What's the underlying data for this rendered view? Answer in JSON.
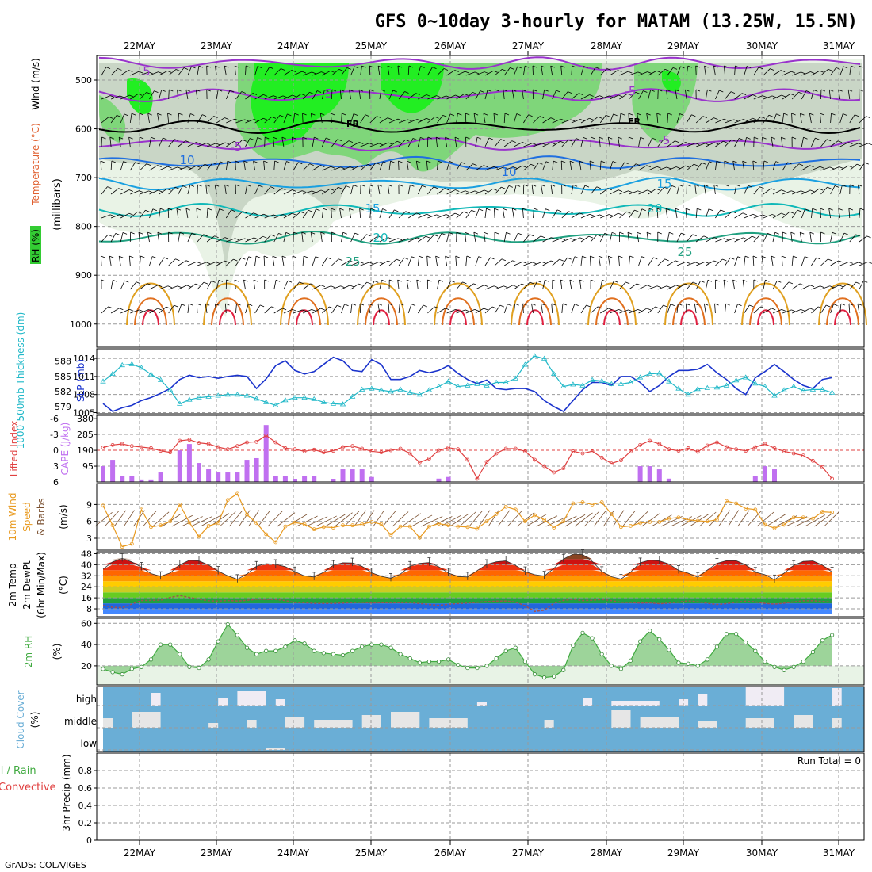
{
  "title": "GFS 0~10day 3-hourly for MATAM (13.25W, 15.5N)",
  "footer": "GrADS: COLA/IGES",
  "run_total_label": "Run Total = 0",
  "x_labels": [
    "22MAY",
    "23MAY",
    "24MAY",
    "25MAY",
    "26MAY",
    "27MAY",
    "28MAY",
    "29MAY",
    "30MAY",
    "31MAY"
  ],
  "colors": {
    "rh_green": "#33cc33",
    "temp_purple": "#9933cc",
    "temp_blue": "#1f6fe0",
    "slp_blue": "#1a33cc",
    "thickness_cyan": "#20b8c8",
    "lifted_red": "#e04040",
    "cape_purple": "#c070f0",
    "wind_orange": "#e89a20",
    "cloud_blue": "#6aaed6",
    "rh2m_green": "#40aa40"
  },
  "chart_data": [
    {
      "type": "heatmap",
      "name_label": "RH (%)",
      "ylabel_parts": [
        "RH (%)",
        "Temperature (°C)",
        "Wind (m/s)"
      ],
      "ylabel_units": "(millibars)",
      "y_ticks": [
        "500",
        "600",
        "700",
        "800",
        "900",
        "1000"
      ],
      "contour_labels": [
        "-5",
        "-5",
        "FR",
        "FR",
        "-5",
        "-5",
        "5",
        "10",
        "10",
        "15",
        "15",
        "20",
        "20",
        "25",
        "25"
      ],
      "grid": true
    },
    {
      "type": "line",
      "ylabel_left": "1000-500mb Thickness (dm)",
      "ylabel_right": "SLP (mb)",
      "left_ticks": [
        "588",
        "585",
        "582",
        "579"
      ],
      "right_ticks": [
        "1014",
        "1011",
        "1008",
        "1005"
      ],
      "series": [
        {
          "name": "SLP (mb)",
          "values": [
            1006.5,
            1005.2,
            1005.8,
            1006.2,
            1007.0,
            1007.5,
            1008.2,
            1009.0,
            1010.5,
            1011.2,
            1010.8,
            1011.0,
            1010.7,
            1011.0,
            1011.2,
            1011.0,
            1009.0,
            1010.6,
            1012.8,
            1013.6,
            1012.0,
            1011.4,
            1011.8,
            1013.0,
            1014.2,
            1013.6,
            1012.0,
            1011.8,
            1013.8,
            1013.0,
            1010.5,
            1010.5,
            1011.0,
            1012.0,
            1011.6,
            1012.0,
            1012.8,
            1011.5,
            1010.5,
            1009.8,
            1010.4,
            1009.0,
            1008.8,
            1009.0,
            1009.0,
            1008.5,
            1007.0,
            1006.0,
            1005.2,
            1007.0,
            1008.8,
            1010.0,
            1010.0,
            1009.5,
            1011.0,
            1011.0,
            1010.0,
            1008.5,
            1009.5,
            1011.0,
            1012.0,
            1012.0,
            1012.2,
            1013.0,
            1011.6,
            1010.5,
            1009.0,
            1008.0,
            1010.8,
            1011.8,
            1013.0,
            1011.8,
            1010.5,
            1009.5,
            1009.0,
            1010.5,
            1010.8
          ]
        },
        {
          "name": "1000-500mb Thickness (dm)",
          "values": [
            584.0,
            585.5,
            587.2,
            587.4,
            586.7,
            585.4,
            584.3,
            582.3,
            579.6,
            580.4,
            580.8,
            581.0,
            581.2,
            581.4,
            581.4,
            581.2,
            580.6,
            579.9,
            579.3,
            580.3,
            580.8,
            580.8,
            580.5,
            579.9,
            579.6,
            579.5,
            581.0,
            582.4,
            582.6,
            582.3,
            582.0,
            582.4,
            581.8,
            581.4,
            582.3,
            583.0,
            584.0,
            583.0,
            583.2,
            583.5,
            583.2,
            583.8,
            583.8,
            584.6,
            587.3,
            589.0,
            588.5,
            585.5,
            583.0,
            583.4,
            583.2,
            584.3,
            584.1,
            583.5,
            583.5,
            583.8,
            584.8,
            585.5,
            585.6,
            584.0,
            582.6,
            581.4,
            582.5,
            582.7,
            582.8,
            583.2,
            584.2,
            584.8,
            583.6,
            583.0,
            581.2,
            582.3,
            583.0,
            582.2,
            582.4,
            582.4,
            581.8
          ]
        }
      ],
      "grid": true
    },
    {
      "type": "bar",
      "ylabel_left": "Lifted Index",
      "ylabel_right": "CAPE (J/kg)",
      "left_ticks": [
        "-6",
        "-3",
        "0",
        "3",
        "6"
      ],
      "right_ticks": [
        "380",
        "285",
        "190",
        "95"
      ],
      "series": [
        {
          "name": "CAPE (J/kg)",
          "values": [
            95,
            133,
            38,
            38,
            15,
            15,
            57,
            0,
            190,
            228,
            114,
            76,
            57,
            57,
            57,
            133,
            143,
            342,
            38,
            38,
            19,
            38,
            38,
            0,
            19,
            76,
            76,
            76,
            30,
            0,
            0,
            0,
            0,
            0,
            0,
            20,
            30,
            0,
            0,
            0,
            0,
            0,
            0,
            0,
            0,
            0,
            0,
            0,
            0,
            0,
            0,
            0,
            0,
            0,
            0,
            0,
            95,
            95,
            76,
            20,
            0,
            0,
            0,
            0,
            0,
            0,
            0,
            0,
            38,
            95,
            76,
            0,
            0,
            0,
            0,
            0,
            0
          ]
        },
        {
          "name": "Lifted Index",
          "values": [
            -0.5,
            -1.0,
            -1.2,
            -0.8,
            -0.6,
            -0.4,
            0.1,
            0.4,
            -1.8,
            -2.0,
            -1.4,
            -1.2,
            -0.6,
            -0.2,
            -0.8,
            -1.5,
            -1.6,
            -2.8,
            -1.5,
            -0.4,
            -0.2,
            0.2,
            -0.1,
            0.4,
            0.1,
            -0.6,
            -0.8,
            -0.3,
            0.2,
            0.4,
            0.0,
            -0.3,
            0.6,
            2.3,
            1.6,
            0.0,
            -0.5,
            -0.2,
            1.8,
            5.4,
            2.2,
            0.6,
            -0.3,
            -0.3,
            0.2,
            1.8,
            3.0,
            4.2,
            3.4,
            0.2,
            0.6,
            0.2,
            1.4,
            2.5,
            1.9,
            0.2,
            -1.0,
            -1.8,
            -1.2,
            -0.2,
            0.1,
            -0.4,
            0.3,
            -0.9,
            -1.5,
            -0.6,
            -0.2,
            0.1,
            -0.6,
            -1.2,
            -0.4,
            0.2,
            0.6,
            1.0,
            2.0,
            3.2,
            5.4
          ]
        }
      ],
      "grid": true
    },
    {
      "type": "line",
      "ylabel_parts": [
        "10m Wind",
        "Speed",
        "& Barbs"
      ],
      "ylabel_units": "(m/s)",
      "y_ticks": [
        "9",
        "6",
        "3"
      ],
      "series": [
        {
          "name": "Speed",
          "values": [
            8.8,
            5.3,
            1.5,
            2.0,
            8.1,
            5.0,
            5.3,
            6.0,
            9.0,
            5.8,
            3.3,
            5.2,
            5.7,
            9.8,
            10.9,
            7.2,
            5.7,
            3.7,
            2.3,
            5.1,
            5.8,
            5.5,
            4.6,
            5.0,
            4.9,
            5.3,
            5.3,
            5.5,
            5.9,
            5.5,
            3.6,
            5.1,
            5.1,
            3.1,
            5.1,
            5.6,
            5.3,
            5.1,
            5.0,
            4.7,
            6.0,
            7.3,
            8.6,
            8.1,
            6.0,
            7.1,
            6.3,
            4.9,
            6.0,
            9.2,
            9.4,
            9.0,
            9.4,
            7.3,
            5.0,
            5.2,
            5.7,
            5.9,
            5.9,
            6.5,
            6.7,
            6.3,
            6.1,
            6.0,
            6.3,
            9.6,
            9.2,
            8.3,
            8.1,
            5.4,
            4.8,
            5.4,
            6.7,
            6.7,
            6.5,
            7.7,
            7.6
          ]
        }
      ],
      "grid": true
    },
    {
      "type": "area",
      "ylabel_parts": [
        "2m Temp",
        "2m DewPt",
        "(6hr Min/Max)"
      ],
      "ylabel_units": "(°C)",
      "y_ticks": [
        "48",
        "40",
        "32",
        "24",
        "16",
        "8"
      ],
      "series": [
        {
          "name": "2m Temp",
          "values": [
            36.8,
            42.1,
            44.6,
            42.0,
            38.2,
            33.6,
            31.5,
            34.0,
            39.9,
            43.2,
            42.8,
            39.8,
            35.3,
            32.0,
            29.4,
            33.3,
            38.9,
            40.8,
            40.2,
            38.6,
            34.9,
            31.9,
            31.1,
            34.5,
            39.6,
            41.4,
            41.3,
            38.8,
            34.2,
            31.6,
            30.2,
            33.2,
            38.9,
            41.0,
            41.6,
            38.5,
            34.0,
            31.4,
            31.1,
            35.7,
            40.2,
            42.1,
            42.8,
            39.5,
            35.0,
            32.8,
            31.8,
            37.4,
            44.1,
            47.7,
            47.4,
            42.4,
            35.1,
            31.3,
            29.6,
            34.6,
            41.4,
            43.3,
            42.8,
            40.5,
            35.9,
            33.9,
            30.9,
            36.1,
            41.0,
            42.9,
            42.9,
            39.9,
            34.6,
            32.8,
            29.1,
            33.9,
            39.5,
            42.4,
            42.8,
            39.7,
            34.7
          ]
        },
        {
          "name": "2m DewPt",
          "values": [
            10.5,
            9.1,
            8.9,
            11.5,
            14.0,
            14.2,
            14.3,
            16.3,
            17.7,
            16.3,
            15.0,
            13.9,
            13.6,
            14.0,
            13.7,
            14.2,
            15.0,
            14.9,
            14.8,
            14.0,
            12.5,
            12.5,
            12.0,
            12.0,
            12.0,
            12.2,
            12.5,
            12.8,
            12.3,
            12.5,
            12.4,
            12.5,
            12.5,
            11.9,
            11.2,
            10.5,
            11.3,
            11.8,
            12.2,
            12.8,
            13.2,
            13.6,
            13.7,
            12.9,
            10.2,
            6.1,
            7.0,
            12.1,
            14.1,
            15.0,
            14.0,
            14.3,
            14.8,
            14.0,
            12.8,
            12.6,
            12.2,
            12.4,
            11.7,
            12.2,
            12.9,
            13.8,
            13.1,
            12.1,
            11.1,
            11.8,
            12.8,
            13.6,
            13.0,
            12.0,
            11.4,
            12.1,
            13.0,
            13.8,
            13.9,
            13.3,
            12.9
          ]
        }
      ],
      "grid": true
    },
    {
      "type": "area",
      "ylabel_parts": [
        "2m RH"
      ],
      "ylabel_units": "(%)",
      "y_ticks": [
        "60",
        "40",
        "20"
      ],
      "series": [
        {
          "name": "2m RH",
          "values": [
            17,
            14,
            12,
            17,
            19,
            26,
            40,
            40,
            31,
            19,
            18,
            26,
            43,
            59,
            49,
            37,
            31,
            34,
            34,
            38,
            44,
            41,
            34,
            32,
            31,
            30,
            34,
            38,
            40,
            40,
            37,
            31,
            27,
            23,
            24,
            24,
            26,
            21,
            18,
            18,
            20,
            27,
            34,
            37,
            24,
            12,
            9,
            10,
            16,
            39,
            51,
            46,
            31,
            20,
            17,
            25,
            43,
            53,
            45,
            35,
            23,
            22,
            20,
            26,
            38,
            50,
            50,
            42,
            34,
            24,
            19,
            16,
            19,
            24,
            33,
            44,
            49
          ]
        }
      ],
      "grid": true
    },
    {
      "type": "heatmap",
      "ylabel_parts": [
        "Cloud Cover"
      ],
      "ylabel_units": "(%)",
      "y_ticks": [
        "high",
        "middle",
        "low"
      ],
      "grid": true
    },
    {
      "type": "bar",
      "ylabel_parts": [
        "Total / Rain",
        "Convective"
      ],
      "ylabel_units": "3hr Precip (mm)",
      "y_ticks": [
        "0",
        "0.2",
        "0.4",
        "0.6",
        "0.8"
      ],
      "series": [
        {
          "name": "3hr Precip (mm)",
          "values": [
            0,
            0,
            0,
            0,
            0,
            0,
            0,
            0,
            0,
            0
          ]
        }
      ],
      "ylim": [
        0,
        1.0
      ],
      "grid": true
    }
  ]
}
